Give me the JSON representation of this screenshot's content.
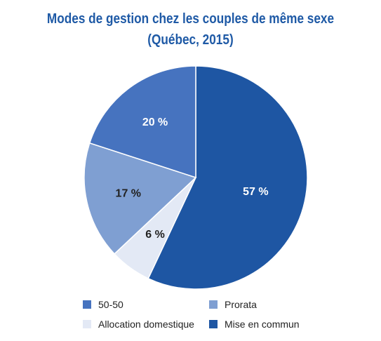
{
  "chart_data": {
    "type": "pie",
    "title": "Modes de gestion chez les couples de même sexe",
    "subtitle": "(Québec, 2015)",
    "slices": [
      {
        "label": "Mise en commun",
        "value": 57,
        "display": "57 %",
        "color": "#1e56a3",
        "label_color": "#ffffff"
      },
      {
        "label": "Allocation domestique",
        "value": 6,
        "display": "6 %",
        "color": "#e3e9f5",
        "label_color": "#222222"
      },
      {
        "label": "Prorata",
        "value": 17,
        "display": "17 %",
        "color": "#7f9fd2",
        "label_color": "#222222"
      },
      {
        "label": "50-50",
        "value": 20,
        "display": "20 %",
        "color": "#4673bf",
        "label_color": "#ffffff"
      }
    ],
    "legend": [
      {
        "label": "50-50",
        "color": "#4673bf"
      },
      {
        "label": "Prorata",
        "color": "#7f9fd2"
      },
      {
        "label": "Allocation domestique",
        "color": "#e3e9f5"
      },
      {
        "label": "Mise en commun",
        "color": "#1e56a3"
      }
    ],
    "legend_position": "bottom"
  }
}
